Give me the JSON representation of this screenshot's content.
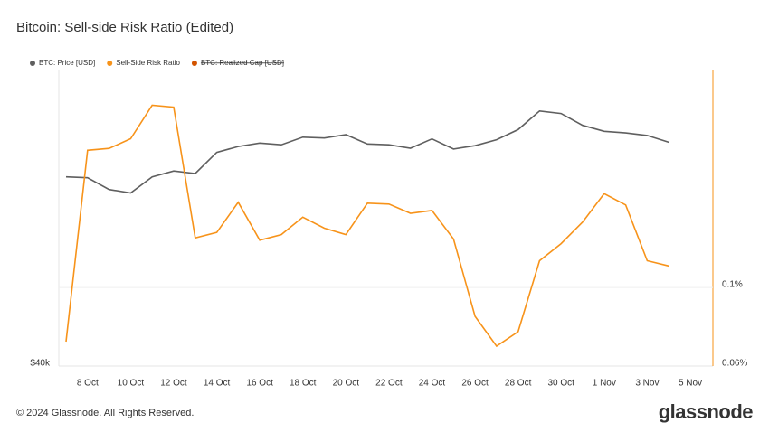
{
  "chart_data": {
    "type": "line",
    "title": "Bitcoin: Sell-side Risk Ratio (Edited)",
    "categories": [
      null,
      "8 Oct",
      null,
      "10 Oct",
      null,
      "12 Oct",
      null,
      "14 Oct",
      null,
      "16 Oct",
      null,
      "18 Oct",
      null,
      "20 Oct",
      null,
      "22 Oct",
      null,
      "24 Oct",
      null,
      "26 Oct",
      null,
      "28 Oct",
      null,
      "30 Oct",
      null,
      "1 Nov",
      null,
      "3 Nov",
      null,
      "5 Nov"
    ],
    "series": [
      {
        "name": "BTC: Price [USD]",
        "color": "#5f5f5f",
        "axis": "y",
        "values": [
          62400,
          62300,
          60900,
          60500,
          62400,
          63100,
          62800,
          65300,
          66000,
          66400,
          66200,
          67100,
          67000,
          67400,
          66300,
          66200,
          65800,
          66900,
          65700,
          66100,
          66800,
          68000,
          70200,
          69900,
          68500,
          67800,
          67600,
          67300,
          66500,
          null
        ]
      },
      {
        "name": "Sell-Side Risk Ratio",
        "color": "#f7931a",
        "axis": "y2",
        "values": [
          0.0703,
          0.244,
          0.247,
          0.263,
          0.327,
          0.323,
          0.138,
          0.143,
          0.174,
          0.136,
          0.141,
          0.158,
          0.147,
          0.141,
          0.173,
          0.172,
          0.162,
          0.165,
          0.137,
          0.0829,
          0.0683,
          0.075,
          0.119,
          0.133,
          0.153,
          0.184,
          0.171,
          0.119,
          0.115,
          null
        ]
      }
    ],
    "legend_hidden": [
      {
        "name": "BTC: Realized Cap [USD]",
        "color": "#d35400"
      }
    ],
    "ylim": [
      40000,
      75000
    ],
    "yticks": [
      {
        "value": 40000,
        "label": "$40k"
      }
    ],
    "y2lim": [
      0.06,
      0.41
    ],
    "y2ticks": [
      {
        "value": 0.1,
        "label": "0.1%"
      },
      {
        "value": 0.06,
        "label": "0.06%"
      }
    ],
    "y2_log": true,
    "grid": true
  },
  "footer": {
    "copyright": "© 2024 Glassnode. All Rights Reserved.",
    "brand": "glassnode"
  }
}
